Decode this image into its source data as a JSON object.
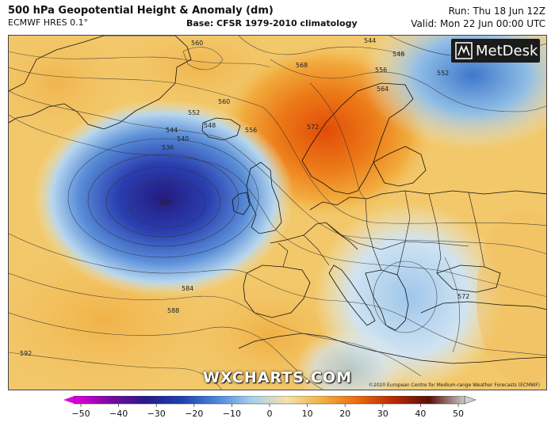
{
  "header": {
    "title": "500 hPa Geopotential Height & Anomaly (dm)",
    "model": "ECMWF HRES 0.1°",
    "base": "Base: CFSR 1979-2010 climatology",
    "run": "Run: Thu 18 Jun 12Z",
    "valid": "Valid: Mon 22 Jun 00:00 UTC"
  },
  "logo": {
    "text": "MetDesk",
    "icon": "metdesk-logo-icon"
  },
  "watermark": "WXCHARTS.COM",
  "copyright": "©2020 European Centre for Medium-range Weather Forecasts (ECMWF)",
  "contour_labels": [
    "560",
    "544",
    "548",
    "552",
    "556",
    "564",
    "568",
    "572",
    "552",
    "544",
    "540",
    "536",
    "532",
    "560",
    "556",
    "548",
    "588",
    "584",
    "592",
    "572"
  ],
  "colorbar": {
    "ticks": [
      "−50",
      "−40",
      "−30",
      "−20",
      "−10",
      "0",
      "10",
      "20",
      "30",
      "40",
      "50"
    ],
    "colors": [
      "#e000e0",
      "#7a0aa0",
      "#2b1a8a",
      "#1d3fb0",
      "#4a86d8",
      "#a8d0ec",
      "#f3e2a8",
      "#f0b040",
      "#e86a10",
      "#b82a08",
      "#5a1008",
      "#c8c8c8"
    ]
  }
}
